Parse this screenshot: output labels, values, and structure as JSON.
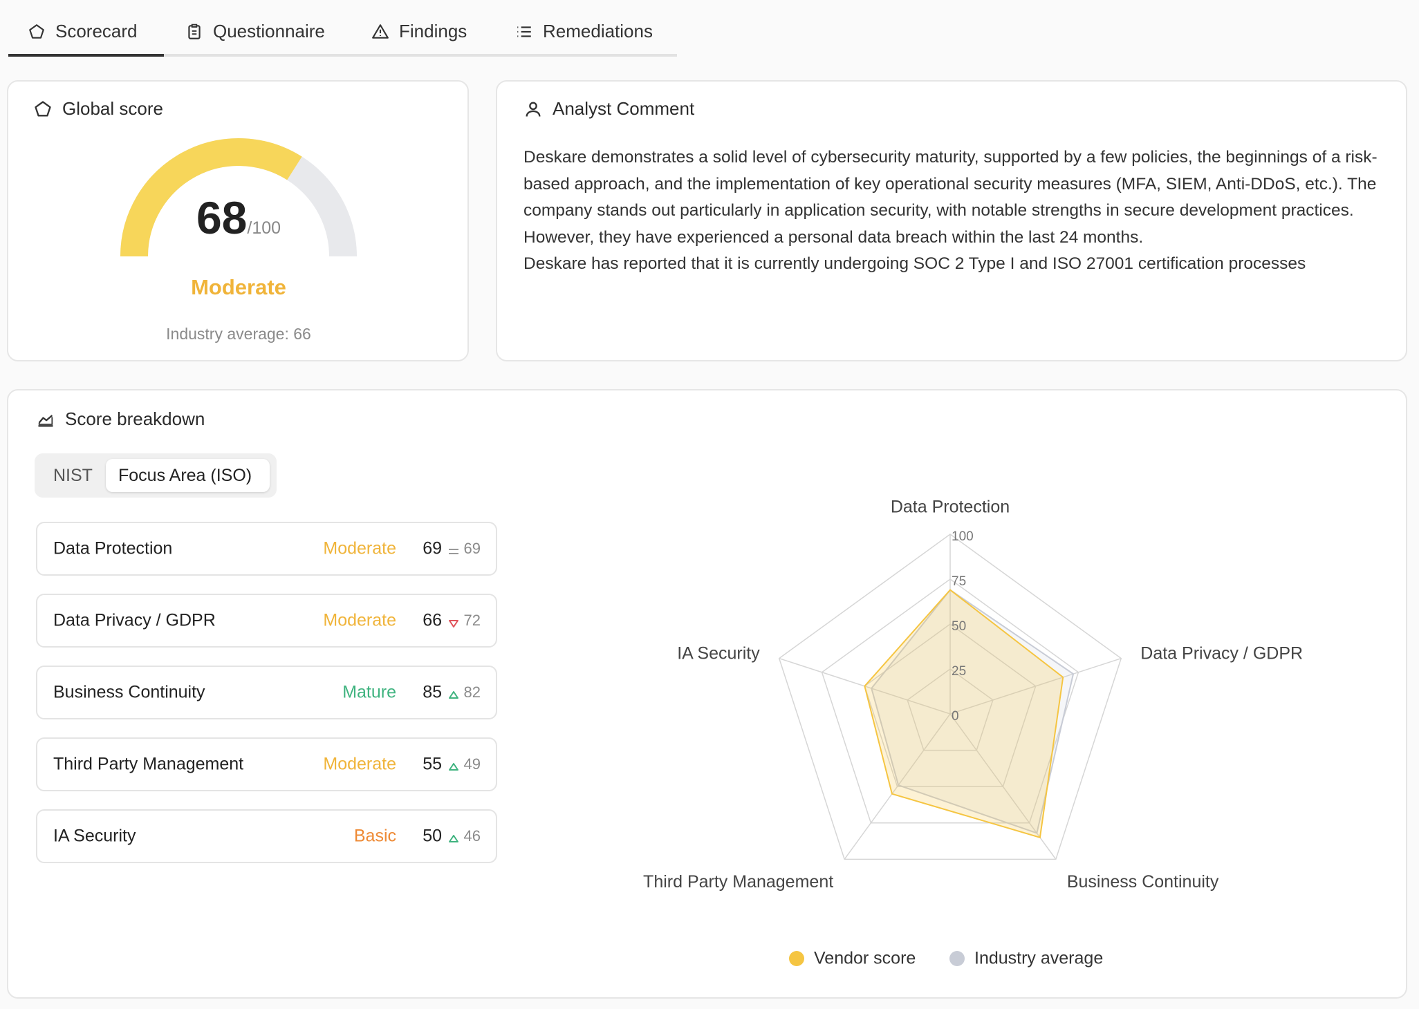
{
  "tabs": [
    "Scorecard",
    "Questionnaire",
    "Findings",
    "Remediations"
  ],
  "global_score": {
    "title": "Global score",
    "score": 68,
    "max": {
      "value": 100,
      "label": "/100"
    },
    "level": "Moderate",
    "level_color": "#f0b43a",
    "industry_average": "Industry average: 66"
  },
  "analyst_comment": {
    "title": "Analyst Comment",
    "paragraphs": [
      "Deskare demonstrates a solid level of cybersecurity maturity, supported by a few policies, the beginnings of a risk-based approach, and the implementation of key operational security measures (MFA, SIEM, Anti-DDoS, etc.). The company stands out particularly in application security, with notable strengths in secure development practices.",
      "However, they have experienced a personal data breach within the last 24 months.",
      "Deskare has reported that it is currently undergoing SOC 2 Type I and ISO 27001 certification processes"
    ]
  },
  "score_breakdown": {
    "title": "Score breakdown",
    "toggle": [
      "NIST",
      "Focus Area (ISO)"
    ],
    "rows": [
      {
        "level": "Moderate",
        "level_color": "#f0b43a"
      },
      {
        "level": "Moderate",
        "level_color": "#f0b43a"
      },
      {
        "level": "Mature",
        "level_color": "#3fb37f"
      },
      {
        "level": "Moderate",
        "level_color": "#f0b43a"
      },
      {
        "level": "Basic",
        "level_color": "#ee8a35"
      }
    ]
  },
  "chart_data": {
    "type": "radar",
    "categories": [
      "Data Protection",
      "Data Privacy / GDPR",
      "Business Continuity",
      "Third Party Management",
      "IA Security"
    ],
    "series": [
      {
        "name": "Vendor score",
        "color": "#f5c542",
        "values": [
          69,
          66,
          85,
          55,
          50
        ]
      },
      {
        "name": "Industry average",
        "color": "#c8ccd6",
        "values": [
          69,
          72,
          82,
          49,
          46
        ]
      }
    ],
    "rlim": [
      0,
      100
    ],
    "rticks": [
      0,
      25,
      50,
      75,
      100
    ]
  }
}
